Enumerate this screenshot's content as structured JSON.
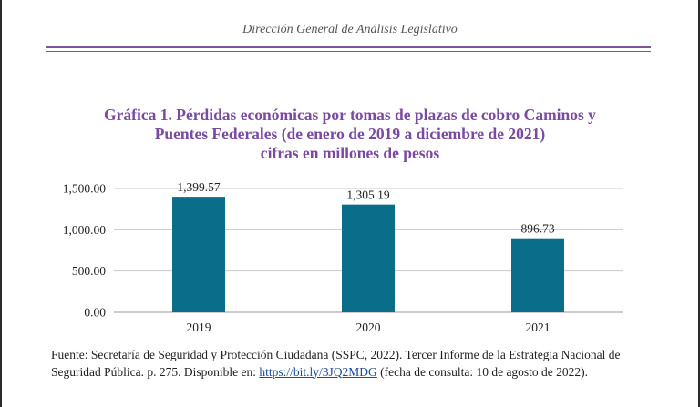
{
  "header": {
    "text": "Dirección General de Análisis Legislativo"
  },
  "chart_data": {
    "type": "bar",
    "title_lines": [
      "Gráfica 1. Pérdidas económicas por tomas de plazas de cobro Caminos y",
      "Puentes Federales (de enero de 2019 a diciembre de 2021)",
      "cifras en millones de pesos"
    ],
    "categories": [
      "2019",
      "2020",
      "2021"
    ],
    "values": [
      1399.57,
      1305.19,
      896.73
    ],
    "value_labels": [
      "1,399.57",
      "1,305.19",
      "896.73"
    ],
    "y_ticks": [
      {
        "value": 0,
        "label": "0.00"
      },
      {
        "value": 500,
        "label": "500.00"
      },
      {
        "value": 1000,
        "label": "1,000.00"
      },
      {
        "value": 1500,
        "label": "1,500.00"
      }
    ],
    "ylim": [
      0,
      1500
    ],
    "grid": true,
    "bar_color": "#0a6e8a"
  },
  "footer": {
    "text_before_link": "Fuente: Secretaría de Seguridad y Protección Ciudadana (SSPC, 2022). Tercer Informe de la Estrategia Nacional de Seguridad Pública. p. 275. Disponible en: ",
    "link_text": "https://bit.ly/3JQ2MDG",
    "text_after_link": " (fecha de consulta: 10 de agosto de 2022)."
  }
}
